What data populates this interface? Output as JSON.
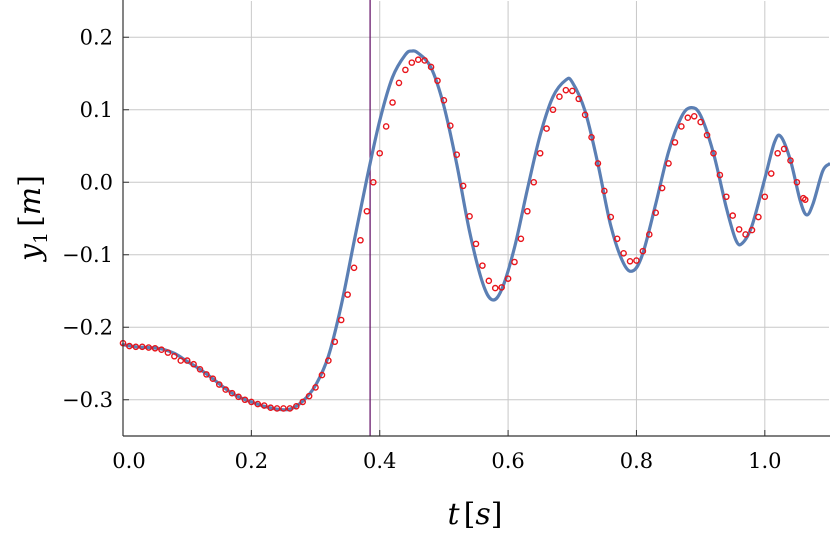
{
  "chart_data": {
    "type": "line",
    "title": "",
    "xlabel": {
      "var": "t",
      "open": "[",
      "unit": "s",
      "close": "]"
    },
    "ylabel": {
      "var": "y",
      "sub": "1",
      "open": "[",
      "unit": "m",
      "close": "]"
    },
    "xlim": [
      0.0,
      1.1
    ],
    "ylim": [
      -0.35,
      0.25
    ],
    "x_ticks": [
      0.0,
      0.2,
      0.4,
      0.6,
      0.8,
      1.0
    ],
    "x_tick_labels": [
      "0.0",
      "0.2",
      "0.4",
      "0.6",
      "0.8",
      "1.0"
    ],
    "y_ticks": [
      0.2,
      0.1,
      0.0,
      -0.1,
      -0.2,
      -0.3
    ],
    "y_tick_labels": [
      "0.2",
      "0.1",
      "0.0",
      "−0.1",
      "−0.2",
      "−0.3"
    ],
    "grid": true,
    "vertical_line": {
      "x": 0.385,
      "color": "#6a1b6e"
    },
    "series": [
      {
        "style": "line",
        "color": "#5b7fb4",
        "points": [
          [
            0.0,
            -0.224
          ],
          [
            0.02,
            -0.227
          ],
          [
            0.04,
            -0.228
          ],
          [
            0.06,
            -0.23
          ],
          [
            0.08,
            -0.236
          ],
          [
            0.1,
            -0.247
          ],
          [
            0.12,
            -0.258
          ],
          [
            0.14,
            -0.271
          ],
          [
            0.16,
            -0.285
          ],
          [
            0.18,
            -0.296
          ],
          [
            0.2,
            -0.303
          ],
          [
            0.22,
            -0.309
          ],
          [
            0.24,
            -0.313
          ],
          [
            0.26,
            -0.313
          ],
          [
            0.28,
            -0.302
          ],
          [
            0.3,
            -0.28
          ],
          [
            0.32,
            -0.24
          ],
          [
            0.34,
            -0.17
          ],
          [
            0.36,
            -0.082
          ],
          [
            0.38,
            0.005
          ],
          [
            0.4,
            0.085
          ],
          [
            0.42,
            0.145
          ],
          [
            0.44,
            0.176
          ],
          [
            0.45,
            0.181
          ],
          [
            0.46,
            0.178
          ],
          [
            0.48,
            0.158
          ],
          [
            0.5,
            0.105
          ],
          [
            0.52,
            0.025
          ],
          [
            0.54,
            -0.068
          ],
          [
            0.56,
            -0.138
          ],
          [
            0.575,
            -0.162
          ],
          [
            0.59,
            -0.148
          ],
          [
            0.61,
            -0.09
          ],
          [
            0.63,
            -0.01
          ],
          [
            0.65,
            0.065
          ],
          [
            0.67,
            0.118
          ],
          [
            0.69,
            0.141
          ],
          [
            0.7,
            0.138
          ],
          [
            0.72,
            0.098
          ],
          [
            0.74,
            0.025
          ],
          [
            0.76,
            -0.06
          ],
          [
            0.78,
            -0.112
          ],
          [
            0.795,
            -0.122
          ],
          [
            0.81,
            -0.098
          ],
          [
            0.83,
            -0.03
          ],
          [
            0.85,
            0.042
          ],
          [
            0.87,
            0.09
          ],
          [
            0.885,
            0.103
          ],
          [
            0.9,
            0.092
          ],
          [
            0.92,
            0.04
          ],
          [
            0.94,
            -0.035
          ],
          [
            0.955,
            -0.08
          ],
          [
            0.965,
            -0.084
          ],
          [
            0.98,
            -0.06
          ],
          [
            1.0,
            0.005
          ],
          [
            1.015,
            0.055
          ],
          [
            1.025,
            0.063
          ],
          [
            1.04,
            0.03
          ],
          [
            1.055,
            -0.025
          ],
          [
            1.065,
            -0.045
          ],
          [
            1.075,
            -0.03
          ],
          [
            1.09,
            0.015
          ],
          [
            1.1,
            0.025
          ]
        ]
      },
      {
        "style": "markers",
        "color": "#e8141b",
        "points": [
          [
            0.0,
            -0.222
          ],
          [
            0.01,
            -0.226
          ],
          [
            0.02,
            -0.227
          ],
          [
            0.03,
            -0.227
          ],
          [
            0.04,
            -0.228
          ],
          [
            0.05,
            -0.229
          ],
          [
            0.06,
            -0.231
          ],
          [
            0.07,
            -0.235
          ],
          [
            0.08,
            -0.24
          ],
          [
            0.09,
            -0.246
          ],
          [
            0.1,
            -0.246
          ],
          [
            0.11,
            -0.251
          ],
          [
            0.12,
            -0.258
          ],
          [
            0.13,
            -0.265
          ],
          [
            0.14,
            -0.271
          ],
          [
            0.15,
            -0.279
          ],
          [
            0.16,
            -0.286
          ],
          [
            0.17,
            -0.291
          ],
          [
            0.18,
            -0.296
          ],
          [
            0.19,
            -0.3
          ],
          [
            0.2,
            -0.303
          ],
          [
            0.21,
            -0.306
          ],
          [
            0.22,
            -0.308
          ],
          [
            0.23,
            -0.311
          ],
          [
            0.24,
            -0.312
          ],
          [
            0.25,
            -0.312
          ],
          [
            0.26,
            -0.312
          ],
          [
            0.27,
            -0.309
          ],
          [
            0.28,
            -0.303
          ],
          [
            0.29,
            -0.295
          ],
          [
            0.3,
            -0.283
          ],
          [
            0.31,
            -0.266
          ],
          [
            0.32,
            -0.246
          ],
          [
            0.33,
            -0.22
          ],
          [
            0.34,
            -0.19
          ],
          [
            0.35,
            -0.155
          ],
          [
            0.36,
            -0.118
          ],
          [
            0.37,
            -0.08
          ],
          [
            0.38,
            -0.04
          ],
          [
            0.39,
            0.0
          ],
          [
            0.4,
            0.04
          ],
          [
            0.41,
            0.077
          ],
          [
            0.42,
            0.11
          ],
          [
            0.43,
            0.137
          ],
          [
            0.44,
            0.155
          ],
          [
            0.45,
            0.165
          ],
          [
            0.46,
            0.169
          ],
          [
            0.47,
            0.168
          ],
          [
            0.48,
            0.159
          ],
          [
            0.49,
            0.14
          ],
          [
            0.5,
            0.113
          ],
          [
            0.51,
            0.078
          ],
          [
            0.52,
            0.038
          ],
          [
            0.53,
            -0.005
          ],
          [
            0.54,
            -0.047
          ],
          [
            0.55,
            -0.085
          ],
          [
            0.56,
            -0.115
          ],
          [
            0.57,
            -0.136
          ],
          [
            0.58,
            -0.146
          ],
          [
            0.59,
            -0.145
          ],
          [
            0.6,
            -0.133
          ],
          [
            0.61,
            -0.11
          ],
          [
            0.62,
            -0.078
          ],
          [
            0.63,
            -0.04
          ],
          [
            0.64,
            0.0
          ],
          [
            0.65,
            0.04
          ],
          [
            0.66,
            0.074
          ],
          [
            0.67,
            0.1
          ],
          [
            0.68,
            0.118
          ],
          [
            0.69,
            0.127
          ],
          [
            0.7,
            0.126
          ],
          [
            0.71,
            0.115
          ],
          [
            0.72,
            0.093
          ],
          [
            0.73,
            0.062
          ],
          [
            0.74,
            0.026
          ],
          [
            0.75,
            -0.012
          ],
          [
            0.76,
            -0.048
          ],
          [
            0.77,
            -0.078
          ],
          [
            0.78,
            -0.098
          ],
          [
            0.79,
            -0.109
          ],
          [
            0.8,
            -0.108
          ],
          [
            0.81,
            -0.095
          ],
          [
            0.82,
            -0.072
          ],
          [
            0.83,
            -0.042
          ],
          [
            0.84,
            -0.008
          ],
          [
            0.85,
            0.026
          ],
          [
            0.86,
            0.055
          ],
          [
            0.87,
            0.077
          ],
          [
            0.88,
            0.089
          ],
          [
            0.89,
            0.091
          ],
          [
            0.9,
            0.083
          ],
          [
            0.91,
            0.065
          ],
          [
            0.92,
            0.04
          ],
          [
            0.93,
            0.01
          ],
          [
            0.94,
            -0.02
          ],
          [
            0.95,
            -0.046
          ],
          [
            0.96,
            -0.065
          ],
          [
            0.97,
            -0.072
          ],
          [
            0.98,
            -0.066
          ],
          [
            0.99,
            -0.048
          ],
          [
            1.0,
            -0.02
          ],
          [
            1.01,
            0.012
          ],
          [
            1.02,
            0.04
          ],
          [
            1.03,
            0.046
          ],
          [
            1.04,
            0.03
          ],
          [
            1.05,
            0.0
          ],
          [
            1.06,
            -0.022
          ],
          [
            1.063,
            -0.024
          ]
        ]
      }
    ]
  }
}
